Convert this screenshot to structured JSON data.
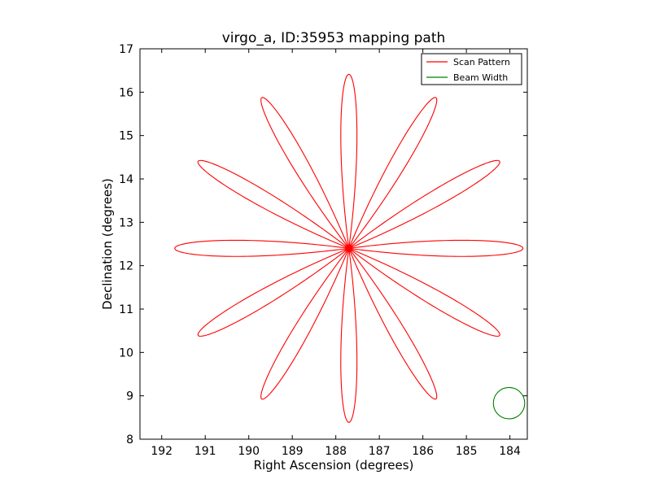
{
  "chart_data": {
    "type": "line",
    "title": "virgo_a, ID:35953 mapping path",
    "xlabel": "Right Ascension (degrees)",
    "ylabel": "Declination (degrees)",
    "xlim": [
      192.5,
      183.6
    ],
    "ylim": [
      8,
      17
    ],
    "x_axis_inverted": true,
    "xticks": [
      192,
      191,
      190,
      189,
      188,
      187,
      186,
      185,
      184
    ],
    "yticks": [
      8,
      9,
      10,
      11,
      12,
      13,
      14,
      15,
      16,
      17
    ],
    "grid": false,
    "legend_position": "top-right",
    "series": [
      {
        "name": "Scan Pattern",
        "color": "#ff0000",
        "shape": "rose",
        "center": [
          187.7,
          12.4
        ],
        "petals": 12,
        "radius_deg": 4.0,
        "petal_half_width_rad": 0.13
      },
      {
        "name": "Beam Width",
        "color": "#008000",
        "shape": "circle",
        "center": [
          184.02,
          8.83
        ],
        "radius_deg": 0.36
      }
    ]
  }
}
